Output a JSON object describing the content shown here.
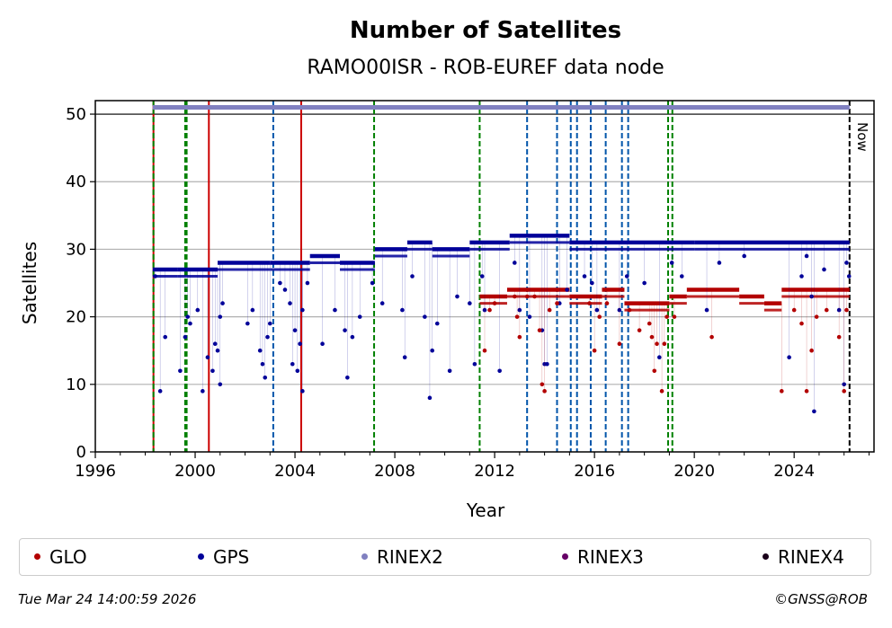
{
  "chart_data": {
    "type": "scatter",
    "title": "Number of Satellites",
    "subtitle": "RAMO00ISR - ROB-EUREF data node",
    "xlabel": "Year",
    "ylabel": "Satellites",
    "xlim": [
      1996,
      2027.2
    ],
    "ylim": [
      0,
      52
    ],
    "xticks": [
      1996,
      2000,
      2004,
      2008,
      2012,
      2016,
      2020,
      2024
    ],
    "yticks": [
      0,
      10,
      20,
      30,
      40,
      50
    ],
    "grid": "horizontal",
    "now_label": "Now",
    "now_year": 2026.22,
    "colors": {
      "GLO": "#b30000",
      "GPS": "#000099",
      "RINEX2": "#8080c0",
      "RINEX3": "#660066",
      "RINEX4": "#1a001a",
      "event_red": "#cc0000",
      "event_green": "#008000",
      "event_blue": "#0055aa"
    },
    "rinex2_span": [
      1998.3,
      2026.22
    ],
    "rinex2_value": 51,
    "gps_segments": [
      {
        "start": 1998.3,
        "end": 1999.3,
        "value": 27
      },
      {
        "start": 1999.3,
        "end": 2000.9,
        "value": 27
      },
      {
        "start": 2000.9,
        "end": 2003.0,
        "value": 28
      },
      {
        "start": 2003.0,
        "end": 2004.6,
        "value": 28
      },
      {
        "start": 2004.6,
        "end": 2005.8,
        "value": 29
      },
      {
        "start": 2005.8,
        "end": 2007.2,
        "value": 28
      },
      {
        "start": 2007.2,
        "end": 2008.5,
        "value": 30
      },
      {
        "start": 2008.5,
        "end": 2009.5,
        "value": 31
      },
      {
        "start": 2009.5,
        "end": 2011.0,
        "value": 30
      },
      {
        "start": 2011.0,
        "end": 2012.6,
        "value": 31
      },
      {
        "start": 2012.6,
        "end": 2015.0,
        "value": 32
      },
      {
        "start": 2015.0,
        "end": 2020.0,
        "value": 31
      },
      {
        "start": 2020.0,
        "end": 2026.22,
        "value": 31
      }
    ],
    "glo_segments": [
      {
        "start": 2011.4,
        "end": 2012.5,
        "value": 23
      },
      {
        "start": 2012.5,
        "end": 2015.0,
        "value": 24
      },
      {
        "start": 2015.0,
        "end": 2016.3,
        "value": 23
      },
      {
        "start": 2016.3,
        "end": 2017.2,
        "value": 24
      },
      {
        "start": 2017.2,
        "end": 2019.0,
        "value": 22
      },
      {
        "start": 2019.0,
        "end": 2019.7,
        "value": 23
      },
      {
        "start": 2019.7,
        "end": 2021.8,
        "value": 24
      },
      {
        "start": 2021.8,
        "end": 2022.8,
        "value": 23
      },
      {
        "start": 2022.8,
        "end": 2023.5,
        "value": 22
      },
      {
        "start": 2023.5,
        "end": 2026.22,
        "value": 24
      }
    ],
    "gps_outliers": [
      [
        1998.4,
        26
      ],
      [
        1998.6,
        9
      ],
      [
        1998.8,
        17
      ],
      [
        1999.4,
        12
      ],
      [
        1999.6,
        17
      ],
      [
        1999.7,
        20
      ],
      [
        1999.8,
        19
      ],
      [
        2000.1,
        21
      ],
      [
        2000.3,
        9
      ],
      [
        2000.5,
        14
      ],
      [
        2000.7,
        12
      ],
      [
        2000.8,
        16
      ],
      [
        2000.9,
        15
      ],
      [
        2001.0,
        10
      ],
      [
        2001.0,
        20
      ],
      [
        2001.1,
        22
      ],
      [
        2002.1,
        19
      ],
      [
        2002.3,
        21
      ],
      [
        2002.6,
        15
      ],
      [
        2002.7,
        13
      ],
      [
        2002.8,
        11
      ],
      [
        2002.9,
        17
      ],
      [
        2003.0,
        19
      ],
      [
        2003.4,
        25
      ],
      [
        2003.6,
        24
      ],
      [
        2003.8,
        22
      ],
      [
        2003.9,
        13
      ],
      [
        2004.0,
        18
      ],
      [
        2004.1,
        12
      ],
      [
        2004.2,
        16
      ],
      [
        2004.3,
        21
      ],
      [
        2004.3,
        9
      ],
      [
        2004.5,
        25
      ],
      [
        2005.1,
        16
      ],
      [
        2005.6,
        21
      ],
      [
        2006.0,
        18
      ],
      [
        2006.1,
        11
      ],
      [
        2006.3,
        17
      ],
      [
        2006.6,
        20
      ],
      [
        2007.1,
        25
      ],
      [
        2007.5,
        22
      ],
      [
        2008.3,
        21
      ],
      [
        2008.4,
        14
      ],
      [
        2008.7,
        26
      ],
      [
        2009.2,
        20
      ],
      [
        2009.4,
        8
      ],
      [
        2009.5,
        15
      ],
      [
        2009.7,
        19
      ],
      [
        2010.2,
        12
      ],
      [
        2010.5,
        23
      ],
      [
        2011.0,
        22
      ],
      [
        2011.2,
        13
      ],
      [
        2011.5,
        26
      ],
      [
        2011.6,
        21
      ],
      [
        2012.2,
        12
      ],
      [
        2012.8,
        28
      ],
      [
        2013.0,
        21
      ],
      [
        2013.4,
        20
      ],
      [
        2013.9,
        18
      ],
      [
        2014.0,
        13
      ],
      [
        2014.1,
        13
      ],
      [
        2014.6,
        22
      ],
      [
        2014.9,
        24
      ],
      [
        2015.6,
        26
      ],
      [
        2015.9,
        25
      ],
      [
        2016.1,
        21
      ],
      [
        2017.0,
        21
      ],
      [
        2017.3,
        26
      ],
      [
        2018.0,
        25
      ],
      [
        2018.6,
        14
      ],
      [
        2019.1,
        28
      ],
      [
        2019.5,
        26
      ],
      [
        2020.5,
        21
      ],
      [
        2021.0,
        28
      ],
      [
        2022.0,
        29
      ],
      [
        2023.8,
        14
      ],
      [
        2024.3,
        26
      ],
      [
        2024.5,
        29
      ],
      [
        2024.7,
        23
      ],
      [
        2024.8,
        6
      ],
      [
        2025.2,
        27
      ],
      [
        2025.8,
        21
      ],
      [
        2026.0,
        10
      ],
      [
        2026.1,
        28
      ],
      [
        2026.2,
        26
      ]
    ],
    "glo_outliers": [
      [
        2011.6,
        15
      ],
      [
        2011.8,
        21
      ],
      [
        2012.0,
        22
      ],
      [
        2012.8,
        23
      ],
      [
        2012.9,
        20
      ],
      [
        2013.0,
        17
      ],
      [
        2013.3,
        23
      ],
      [
        2013.6,
        23
      ],
      [
        2013.8,
        18
      ],
      [
        2013.9,
        10
      ],
      [
        2014.0,
        9
      ],
      [
        2014.2,
        21
      ],
      [
        2014.5,
        22
      ],
      [
        2015.8,
        22
      ],
      [
        2016.0,
        15
      ],
      [
        2016.2,
        20
      ],
      [
        2016.5,
        22
      ],
      [
        2017.0,
        16
      ],
      [
        2017.4,
        21
      ],
      [
        2017.8,
        18
      ],
      [
        2018.2,
        19
      ],
      [
        2018.3,
        17
      ],
      [
        2018.4,
        12
      ],
      [
        2018.5,
        16
      ],
      [
        2018.7,
        9
      ],
      [
        2018.8,
        16
      ],
      [
        2018.9,
        20
      ],
      [
        2019.2,
        20
      ],
      [
        2020.7,
        17
      ],
      [
        2023.5,
        9
      ],
      [
        2024.0,
        21
      ],
      [
        2024.3,
        19
      ],
      [
        2024.5,
        9
      ],
      [
        2024.7,
        15
      ],
      [
        2024.9,
        20
      ],
      [
        2025.3,
        21
      ],
      [
        2025.8,
        17
      ],
      [
        2026.0,
        9
      ],
      [
        2026.1,
        21
      ]
    ],
    "event_lines": [
      {
        "x": 1998.33,
        "color": "event_red",
        "style": "solid"
      },
      {
        "x": 1998.33,
        "color": "event_green",
        "style": "dashed"
      },
      {
        "x": 1999.6,
        "color": "event_green",
        "style": "dashed"
      },
      {
        "x": 1999.66,
        "color": "event_green",
        "style": "dashed"
      },
      {
        "x": 2000.55,
        "color": "event_red",
        "style": "solid"
      },
      {
        "x": 2003.13,
        "color": "event_blue",
        "style": "dashed"
      },
      {
        "x": 2004.25,
        "color": "event_red",
        "style": "solid"
      },
      {
        "x": 2007.17,
        "color": "event_green",
        "style": "dashed"
      },
      {
        "x": 2011.4,
        "color": "event_green",
        "style": "dashed"
      },
      {
        "x": 2013.3,
        "color": "event_blue",
        "style": "dashed"
      },
      {
        "x": 2014.5,
        "color": "event_blue",
        "style": "dashed"
      },
      {
        "x": 2015.05,
        "color": "event_blue",
        "style": "dashed"
      },
      {
        "x": 2015.3,
        "color": "event_blue",
        "style": "dashed"
      },
      {
        "x": 2015.85,
        "color": "event_blue",
        "style": "dashed"
      },
      {
        "x": 2016.45,
        "color": "event_blue",
        "style": "dashed"
      },
      {
        "x": 2017.1,
        "color": "event_blue",
        "style": "dashed"
      },
      {
        "x": 2017.35,
        "color": "event_blue",
        "style": "dashed"
      },
      {
        "x": 2018.95,
        "color": "event_green",
        "style": "dashed"
      },
      {
        "x": 2019.12,
        "color": "event_green",
        "style": "dashed"
      }
    ]
  },
  "legend": {
    "items": [
      {
        "label": "GLO",
        "color": "#b30000"
      },
      {
        "label": "GPS",
        "color": "#000099"
      },
      {
        "label": "RINEX2",
        "color": "#8080c0"
      },
      {
        "label": "RINEX3",
        "color": "#660066"
      },
      {
        "label": "RINEX4",
        "color": "#1a001a"
      }
    ]
  },
  "footer": {
    "timestamp": "Tue Mar 24 14:00:59 2026",
    "credit": "©GNSS@ROB"
  }
}
